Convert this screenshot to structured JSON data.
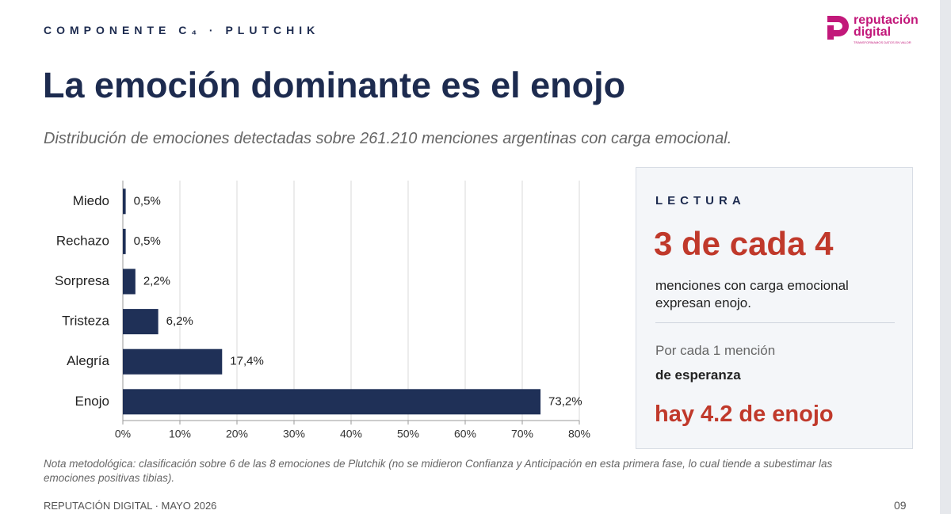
{
  "header": {
    "kicker": "COMPONENTE C₄ · PLUTCHIK",
    "logo_line1": "reputación",
    "logo_line2": "digital",
    "logo_tagline": "TRANSFORMAMOS DATOS EN VALOR"
  },
  "title": "La emoción dominante es el enojo",
  "subtitle": "Distribución de emociones detectadas sobre 261.210 menciones argentinas con carga emocional.",
  "chart_data": {
    "type": "bar",
    "orientation": "horizontal",
    "categories": [
      "Miedo",
      "Rechazo",
      "Sorpresa",
      "Tristeza",
      "Alegría",
      "Enojo"
    ],
    "values": [
      0.5,
      0.5,
      2.2,
      6.2,
      17.4,
      73.2
    ],
    "value_labels": [
      "0,5%",
      "0,5%",
      "2,2%",
      "6,2%",
      "17,4%",
      "73,2%"
    ],
    "color": "#1f3057",
    "xlim": [
      0,
      80
    ],
    "xticks": [
      {
        "value": 0,
        "label": "0%"
      },
      {
        "value": 10,
        "label": "10%"
      },
      {
        "value": 20,
        "label": "20%"
      },
      {
        "value": 30,
        "label": "30%"
      },
      {
        "value": 40,
        "label": "40%"
      },
      {
        "value": 50,
        "label": "50%"
      },
      {
        "value": 60,
        "label": "60%"
      },
      {
        "value": 70,
        "label": "70%"
      },
      {
        "value": 80,
        "label": "80%"
      }
    ],
    "grid": true
  },
  "panel": {
    "label": "LECTURA",
    "headline": "3 de cada 4",
    "text": "menciones con carga emocional expresan enojo.",
    "line1": "Por cada 1 mención",
    "line2": "de esperanza",
    "conclusion": "hay 4.2 de enojo"
  },
  "note": "Nota metodológica: clasificación sobre 6 de las 8 emociones de Plutchik (no se midieron Confianza y Anticipación en esta primera fase, lo cual tiende a subestimar las emociones positivas tibias).",
  "footer": {
    "left": "REPUTACIÓN DIGITAL · MAYO 2026",
    "page": "09"
  }
}
